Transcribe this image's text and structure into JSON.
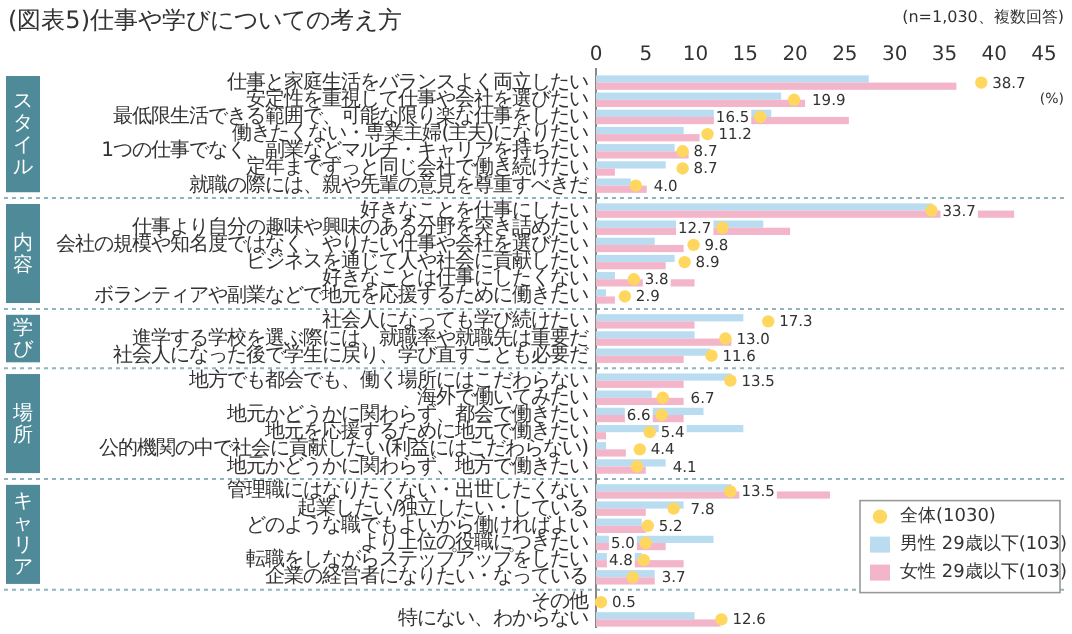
{
  "chart_data": {
    "type": "bar",
    "orientation": "horizontal",
    "title": "(図表5)仕事や学びについての考え方",
    "subtitle": "(n=1,030、複数回答)",
    "annotations": [
      "(%)",
      "スタイル",
      "内容",
      "学び",
      "場所",
      "キャリア"
    ],
    "categories": [
      "仕事と家庭生活をバランスよく両立したい",
      "安定性を重視して仕事や会社を選びたい",
      "最低限生活できる範囲で、可能な限り楽な仕事をしたい",
      "働きたくない・専業主婦(主夫)になりたい",
      "1つの仕事でなく、副業などマルチ・キャリアを持ちたい",
      "定年までずっと同じ会社で働き続けたい",
      "就職の際には、親や先輩の意見を尊重すべきだ",
      "好きなことを仕事にしたい",
      "仕事より自分の趣味や興味のある分野を突き詰めたい",
      "会社の規模や知名度ではなく、やりたい仕事や会社を選びたい",
      "ビジネスを通じて人や社会に貢献したい",
      "好きなことは仕事にしたくない",
      "ボランティアや副業などで地元を応援するために働きたい",
      "社会人になっても学び続けたい",
      "進学する学校を選ぶ際には、就職率や就職先は重要だ",
      "社会人になった後で学生に戻り、学び直すことも必要だ",
      "地方でも都会でも、働く場所にはこだわらない",
      "海外で働いてみたい",
      "地元かどうかに関わらず、都会で働きたい",
      "地元を応援するために地元で働きたい",
      "公的機関の中で社会に貢献したい(利益にはこだわらない)",
      "地元かどうかに関わらず、地方で働きたい",
      "管理職にはなりたくない・出世したくない",
      "起業したい/独立したい・している",
      "どのような職でもよいから働ければよい",
      "より上位の役職につきたい",
      "転職をしながらステップアップをしたい",
      "企業の経営者になりたい・なっている",
      "その他",
      "特にない、わからない"
    ],
    "series": [
      {
        "name": "全体(1030)",
        "type": "scatter",
        "color": "#ffd75e",
        "values": [
          38.7,
          19.9,
          16.5,
          11.2,
          8.7,
          8.7,
          4.0,
          33.7,
          12.7,
          9.8,
          8.9,
          3.8,
          2.9,
          17.3,
          13.0,
          11.6,
          13.5,
          6.7,
          6.6,
          5.4,
          4.4,
          4.1,
          13.5,
          7.8,
          5.2,
          5.0,
          4.8,
          3.7,
          0.5,
          12.6
        ],
        "value_labels": [
          "38.7",
          "19.9",
          "16.5",
          "11.2",
          "8.7",
          "8.7",
          "4.0",
          "33.7",
          "12.7",
          "9.8",
          "8.9",
          "3.8",
          "2.9",
          "17.3",
          "13.0",
          "11.6",
          "13.5",
          "6.7",
          "6.6",
          "5.4",
          "4.4",
          "4.1",
          "13.5",
          "7.8",
          "5.2",
          "5.0",
          "4.8",
          "3.7",
          "0.5",
          "12.6"
        ]
      },
      {
        "name": "男性 29歳以下(103)",
        "color": "#b9dcf1",
        "values": [
          27.4,
          18.6,
          17.6,
          8.8,
          7.9,
          7.0,
          3.5,
          33.8,
          16.8,
          5.9,
          7.9,
          1.9,
          1.0,
          14.8,
          9.9,
          11.5,
          13.6,
          5.6,
          10.8,
          14.8,
          1.0,
          7.0,
          13.6,
          8.8,
          4.6,
          11.8,
          4.6,
          5.9,
          0,
          9.9
        ]
      },
      {
        "name": "女性 29歳以下(103)",
        "color": "#f2b5c9",
        "values": [
          36.2,
          21.0,
          25.4,
          10.4,
          9.3,
          1.9,
          5.1,
          42.0,
          19.5,
          8.8,
          7.0,
          9.9,
          1.9,
          9.9,
          13.6,
          8.8,
          8.8,
          8.8,
          8.8,
          1.0,
          3.0,
          5.0,
          23.5,
          5.0,
          5.0,
          7.0,
          8.8,
          5.9,
          0,
          12.5
        ]
      }
    ],
    "xlim": [
      0,
      45
    ],
    "xticks": [
      0,
      5,
      10,
      15,
      20,
      25,
      30,
      35,
      40,
      45
    ],
    "legend": "bottom right",
    "marker": "circle"
  }
}
